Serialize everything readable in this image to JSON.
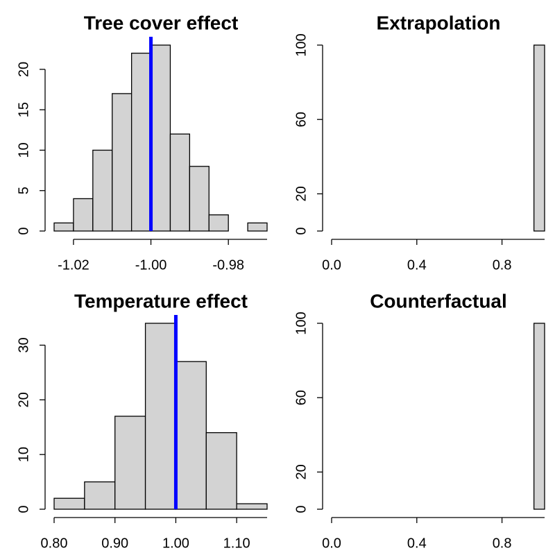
{
  "chart_data": [
    {
      "type": "histogram",
      "title": "Tree cover effect",
      "bins": [
        -1.025,
        -1.02,
        -1.015,
        -1.01,
        -1.005,
        -1.0,
        -0.995,
        -0.99,
        -0.985,
        -0.98,
        -0.975,
        -0.97
      ],
      "values": [
        1,
        4,
        10,
        17,
        22,
        23,
        12,
        8,
        2,
        0,
        1
      ],
      "color": "#d3d3d3",
      "xlim": [
        -1.025,
        -0.97
      ],
      "ylim": [
        0,
        23
      ],
      "xticks": [
        {
          "value": -1.02,
          "label": "-1.02"
        },
        {
          "value": -1.0,
          "label": "-1.00"
        },
        {
          "value": -0.98,
          "label": "-0.98"
        }
      ],
      "yticks": [
        0,
        5,
        10,
        15,
        20
      ],
      "reference_line": {
        "value": -1.0,
        "color": "#0000ff"
      }
    },
    {
      "type": "histogram",
      "title": "Extrapolation",
      "bins": [
        0,
        0.05,
        0.1,
        0.15,
        0.2,
        0.25,
        0.3,
        0.35,
        0.4,
        0.45,
        0.5,
        0.55,
        0.6,
        0.65,
        0.7,
        0.75,
        0.8,
        0.85,
        0.9,
        0.95,
        1.0
      ],
      "values": [
        0,
        0,
        0,
        0,
        0,
        0,
        0,
        0,
        0,
        0,
        0,
        0,
        0,
        0,
        0,
        0,
        0,
        0,
        0,
        100
      ],
      "color": "#d3d3d3",
      "xlim": [
        0,
        1
      ],
      "ylim": [
        0,
        100
      ],
      "xticks": [
        {
          "value": 0,
          "label": "0.0"
        },
        {
          "value": 0.4,
          "label": "0.4"
        },
        {
          "value": 0.8,
          "label": "0.8"
        }
      ],
      "yticks": [
        0,
        20,
        60,
        100
      ]
    },
    {
      "type": "histogram",
      "title": "Temperature effect",
      "bins": [
        0.8,
        0.85,
        0.9,
        0.95,
        1.0,
        1.05,
        1.1,
        1.15
      ],
      "values": [
        2,
        5,
        17,
        34,
        27,
        14,
        1
      ],
      "color": "#d3d3d3",
      "xlim": [
        0.8,
        1.15
      ],
      "ylim": [
        0,
        34
      ],
      "xticks": [
        {
          "value": 0.8,
          "label": "0.80"
        },
        {
          "value": 0.9,
          "label": "0.90"
        },
        {
          "value": 1.0,
          "label": "1.00"
        },
        {
          "value": 1.1,
          "label": "1.10"
        }
      ],
      "yticks": [
        0,
        10,
        20,
        30
      ],
      "reference_line": {
        "value": 1.0,
        "color": "#0000ff"
      }
    },
    {
      "type": "histogram",
      "title": "Counterfactual",
      "bins": [
        0,
        0.05,
        0.1,
        0.15,
        0.2,
        0.25,
        0.3,
        0.35,
        0.4,
        0.45,
        0.5,
        0.55,
        0.6,
        0.65,
        0.7,
        0.75,
        0.8,
        0.85,
        0.9,
        0.95,
        1.0
      ],
      "values": [
        0,
        0,
        0,
        0,
        0,
        0,
        0,
        0,
        0,
        0,
        0,
        0,
        0,
        0,
        0,
        0,
        0,
        0,
        0,
        100
      ],
      "color": "#d3d3d3",
      "xlim": [
        0,
        1
      ],
      "ylim": [
        0,
        100
      ],
      "xticks": [
        {
          "value": 0,
          "label": "0.0"
        },
        {
          "value": 0.4,
          "label": "0.4"
        },
        {
          "value": 0.8,
          "label": "0.8"
        }
      ],
      "yticks": [
        0,
        20,
        60,
        100
      ]
    }
  ]
}
